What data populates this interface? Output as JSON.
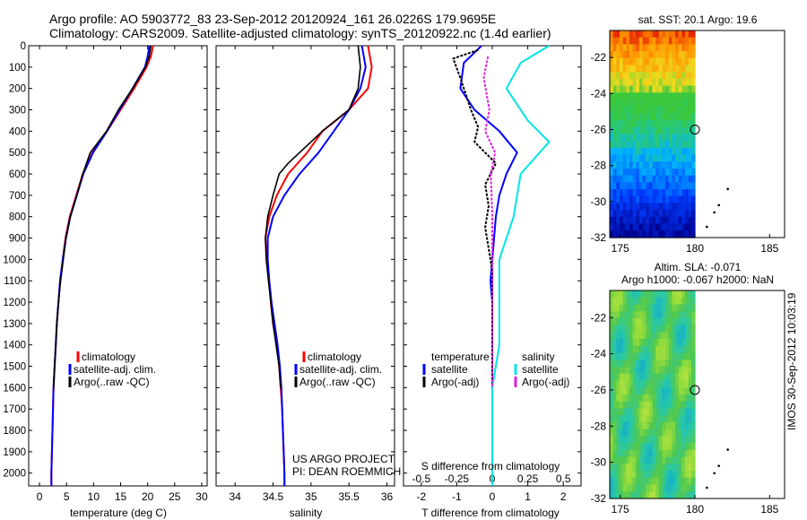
{
  "header": {
    "title_line1": "Argo profile: AO 5903772_83 23-Sep-2012 20120924_161 26.0226S 179.9695E",
    "title_line2": "Climatology: CARS2009. Satellite-adjusted climatology: synTS_20120922.nc (1.4d earlier)"
  },
  "colors": {
    "climatology": "#ff0000",
    "satellite": "#0000ff",
    "argo": "#000000",
    "sat_salinity": "#00e5e5",
    "argo_salinity": "#e020e0"
  },
  "depth_ticks": [
    0,
    100,
    200,
    300,
    400,
    500,
    600,
    700,
    800,
    900,
    1000,
    1100,
    1200,
    1300,
    1400,
    1500,
    1600,
    1700,
    1800,
    1900,
    2000
  ],
  "chart_data": [
    {
      "type": "line",
      "name": "temperature-panel",
      "xlabel": "temperature (deg C)",
      "ylabel": "",
      "xlim": [
        -2,
        31
      ],
      "ylim": [
        2060,
        0
      ],
      "xticks": [
        0,
        5,
        10,
        15,
        20,
        25,
        30
      ],
      "legend": [
        "climatology",
        "satellite-adj. clim.",
        "Argo(..raw -QC)"
      ],
      "series": [
        {
          "key": "climatology",
          "points": [
            [
              21,
              0
            ],
            [
              20.6,
              50
            ],
            [
              19.8,
              100
            ],
            [
              17.5,
              200
            ],
            [
              15,
              300
            ],
            [
              12.5,
              400
            ],
            [
              9.8,
              500
            ],
            [
              8,
              600
            ],
            [
              6.8,
              700
            ],
            [
              5.6,
              800
            ],
            [
              4.8,
              900
            ],
            [
              4.3,
              1000
            ],
            [
              3.8,
              1100
            ],
            [
              3.5,
              1200
            ],
            [
              3.2,
              1300
            ],
            [
              3.0,
              1400
            ],
            [
              2.8,
              1500
            ],
            [
              2.6,
              1600
            ],
            [
              2.5,
              1700
            ],
            [
              2.4,
              1800
            ],
            [
              2.3,
              1900
            ],
            [
              2.2,
              2000
            ],
            [
              2.2,
              2060
            ]
          ]
        },
        {
          "key": "satellite",
          "points": [
            [
              20.3,
              0
            ],
            [
              20,
              50
            ],
            [
              19.5,
              100
            ],
            [
              17.2,
              200
            ],
            [
              14.8,
              300
            ],
            [
              12.5,
              400
            ],
            [
              9.9,
              500
            ],
            [
              8.1,
              600
            ],
            [
              6.9,
              700
            ],
            [
              5.7,
              800
            ],
            [
              4.9,
              900
            ],
            [
              4.3,
              1000
            ],
            [
              3.8,
              1100
            ],
            [
              3.5,
              1200
            ],
            [
              3.2,
              1300
            ],
            [
              3.0,
              1400
            ],
            [
              2.8,
              1500
            ],
            [
              2.6,
              1600
            ],
            [
              2.5,
              1700
            ],
            [
              2.4,
              1800
            ],
            [
              2.3,
              1900
            ],
            [
              2.2,
              2000
            ],
            [
              2.2,
              2060
            ]
          ]
        },
        {
          "key": "argo",
          "points": [
            [
              20.6,
              0
            ],
            [
              20.3,
              50
            ],
            [
              19.6,
              100
            ],
            [
              17.2,
              200
            ],
            [
              14.6,
              300
            ],
            [
              12.4,
              400
            ],
            [
              10.3,
              470
            ],
            [
              9.4,
              500
            ],
            [
              8,
              600
            ],
            [
              6.9,
              700
            ],
            [
              5.7,
              800
            ],
            [
              4.9,
              900
            ],
            [
              4.4,
              1000
            ],
            [
              3.9,
              1100
            ],
            [
              3.5,
              1200
            ],
            [
              3.2,
              1300
            ],
            [
              3.0,
              1400
            ],
            [
              2.8,
              1500
            ],
            [
              2.6,
              1600
            ]
          ]
        }
      ]
    },
    {
      "type": "line",
      "name": "salinity-panel",
      "xlabel": "salinity",
      "ylabel": "",
      "xlim": [
        33.75,
        36.1
      ],
      "ylim": [
        2060,
        0
      ],
      "xticks": [
        34,
        34.5,
        35,
        35.5,
        36
      ],
      "xticklabels": [
        "34",
        "34.5",
        "35",
        "35.5",
        "36"
      ],
      "legend": [
        "climatology",
        "satellite-adj. clim.",
        "Argo(..raw -QC)"
      ],
      "annotation": [
        "US ARGO PROJECT",
        "PI: DEAN ROEMMICH"
      ],
      "series": [
        {
          "key": "climatology",
          "points": [
            [
              35.75,
              0
            ],
            [
              35.8,
              100
            ],
            [
              35.75,
              200
            ],
            [
              35.5,
              300
            ],
            [
              35.15,
              400
            ],
            [
              34.95,
              500
            ],
            [
              34.7,
              600
            ],
            [
              34.55,
              700
            ],
            [
              34.45,
              800
            ],
            [
              34.4,
              900
            ],
            [
              34.42,
              1000
            ],
            [
              34.45,
              1100
            ],
            [
              34.47,
              1200
            ],
            [
              34.5,
              1300
            ],
            [
              34.55,
              1400
            ],
            [
              34.58,
              1500
            ],
            [
              34.6,
              1600
            ],
            [
              34.62,
              1700
            ],
            [
              34.63,
              1800
            ],
            [
              34.64,
              1900
            ],
            [
              34.65,
              2000
            ],
            [
              34.65,
              2060
            ]
          ]
        },
        {
          "key": "satellite",
          "points": [
            [
              35.67,
              0
            ],
            [
              35.72,
              100
            ],
            [
              35.65,
              200
            ],
            [
              35.5,
              300
            ],
            [
              35.3,
              400
            ],
            [
              35.1,
              500
            ],
            [
              34.85,
              600
            ],
            [
              34.65,
              700
            ],
            [
              34.5,
              800
            ],
            [
              34.43,
              900
            ],
            [
              34.43,
              1000
            ],
            [
              34.45,
              1100
            ],
            [
              34.48,
              1200
            ],
            [
              34.52,
              1300
            ],
            [
              34.56,
              1400
            ],
            [
              34.59,
              1500
            ],
            [
              34.61,
              1600
            ],
            [
              34.62,
              1700
            ],
            [
              34.63,
              1800
            ],
            [
              34.64,
              1900
            ],
            [
              34.65,
              2000
            ],
            [
              34.65,
              2060
            ]
          ]
        },
        {
          "key": "argo",
          "points": [
            [
              35.62,
              0
            ],
            [
              35.65,
              100
            ],
            [
              35.62,
              200
            ],
            [
              35.5,
              300
            ],
            [
              35.15,
              400
            ],
            [
              34.85,
              500
            ],
            [
              34.7,
              550
            ],
            [
              34.58,
              600
            ],
            [
              34.5,
              700
            ],
            [
              34.43,
              800
            ],
            [
              34.4,
              900
            ],
            [
              34.41,
              1000
            ],
            [
              34.44,
              1100
            ],
            [
              34.47,
              1200
            ],
            [
              34.5,
              1300
            ],
            [
              34.54,
              1400
            ],
            [
              34.58,
              1500
            ],
            [
              34.6,
              1600
            ]
          ]
        }
      ]
    },
    {
      "type": "line",
      "name": "difference-panel",
      "xlabel": "T difference from climatology",
      "xlabel_top": "S difference from climatology",
      "xlim": [
        -2.5,
        2.5
      ],
      "ylim": [
        2060,
        0
      ],
      "xticks": [
        -2,
        -1,
        0,
        1,
        2
      ],
      "sticks": [
        [
          -0.5,
          "-0.5"
        ],
        [
          -0.25,
          "-0.25"
        ],
        [
          0,
          "0"
        ],
        [
          0.25,
          "0.25"
        ],
        [
          0.5,
          "0.5"
        ]
      ],
      "legend_temperature": {
        "header": "temperature",
        "items": [
          "satellite",
          "Argo(-adj)"
        ]
      },
      "legend_salinity": {
        "header": "salinity",
        "items": [
          "satellite",
          "Argo(-adj)"
        ]
      },
      "series": [
        {
          "key": "t_satellite",
          "points": [
            [
              -0.3,
              0
            ],
            [
              -0.8,
              80
            ],
            [
              -0.9,
              200
            ],
            [
              -0.5,
              300
            ],
            [
              0.2,
              400
            ],
            [
              0.7,
              500
            ],
            [
              0.4,
              600
            ],
            [
              0.2,
              700
            ],
            [
              0.1,
              800
            ],
            [
              0.05,
              900
            ],
            [
              0,
              1000
            ],
            [
              -0.05,
              1100
            ],
            [
              0,
              1200
            ],
            [
              0,
              1400
            ],
            [
              0,
              1600
            ],
            [
              0,
              1800
            ],
            [
              0,
              2000
            ],
            [
              0,
              2060
            ]
          ]
        },
        {
          "key": "t_argo",
          "points": [
            [
              -0.4,
              20
            ],
            [
              -1.1,
              60
            ],
            [
              -0.9,
              150
            ],
            [
              -0.6,
              300
            ],
            [
              -0.4,
              380
            ],
            [
              -0.5,
              450
            ],
            [
              -0.2,
              500
            ],
            [
              0.1,
              550
            ],
            [
              -0.2,
              650
            ],
            [
              -0.1,
              750
            ],
            [
              -0.2,
              850
            ],
            [
              -0.1,
              950
            ],
            [
              0,
              1050
            ],
            [
              0,
              1200
            ],
            [
              0,
              1400
            ],
            [
              0,
              1600
            ]
          ]
        },
        {
          "key": "s_satellite",
          "points": [
            [
              0.4,
              0
            ],
            [
              0.2,
              80
            ],
            [
              0.1,
              200
            ],
            [
              0.25,
              350
            ],
            [
              0.4,
              450
            ],
            [
              0.2,
              600
            ],
            [
              0.15,
              800
            ],
            [
              0.05,
              1000
            ],
            [
              0.05,
              1200
            ],
            [
              0.05,
              1400
            ],
            [
              0,
              1600
            ],
            [
              0,
              1800
            ],
            [
              0,
              2060
            ]
          ]
        },
        {
          "key": "s_argo",
          "points": [
            [
              -0.03,
              50
            ],
            [
              -0.06,
              150
            ],
            [
              -0.02,
              300
            ],
            [
              -0.05,
              400
            ],
            [
              0.02,
              500
            ],
            [
              -0.01,
              600
            ],
            [
              0,
              800
            ],
            [
              0,
              1000
            ],
            [
              0,
              1200
            ],
            [
              0,
              1400
            ],
            [
              0,
              1600
            ]
          ]
        }
      ]
    },
    {
      "type": "heatmap",
      "name": "sst-map",
      "title": "sat. SST: 20.1  Argo: 19.6",
      "xlim": [
        174.3,
        186
      ],
      "ylim": [
        -32,
        -20.5
      ],
      "xticks": [
        175,
        180,
        185
      ],
      "yticks": [
        -22,
        -24,
        -26,
        -28,
        -30,
        -32
      ],
      "marker": [
        180,
        -26
      ],
      "islands": [
        [
          182.2,
          -29.3
        ],
        [
          181.6,
          -30.2
        ],
        [
          181.3,
          -30.6
        ],
        [
          180.8,
          -31.4
        ]
      ]
    },
    {
      "type": "heatmap",
      "name": "sla-map",
      "title": "Altim. SLA: -0.071",
      "subtitle": "Argo h1000: -0.067 h2000: NaN",
      "xlim": [
        174.3,
        186
      ],
      "ylim": [
        -32,
        -20.5
      ],
      "xticks": [
        175,
        180,
        185
      ],
      "yticks": [
        -22,
        -24,
        -26,
        -28,
        -30,
        -32
      ],
      "marker": [
        180,
        -26
      ],
      "islands": [
        [
          182.2,
          -29.3
        ],
        [
          181.6,
          -30.2
        ],
        [
          181.3,
          -30.6
        ],
        [
          180.8,
          -31.4
        ]
      ]
    }
  ],
  "footer_stamp": "IMOS 30-Sep-2012 10:03:19"
}
